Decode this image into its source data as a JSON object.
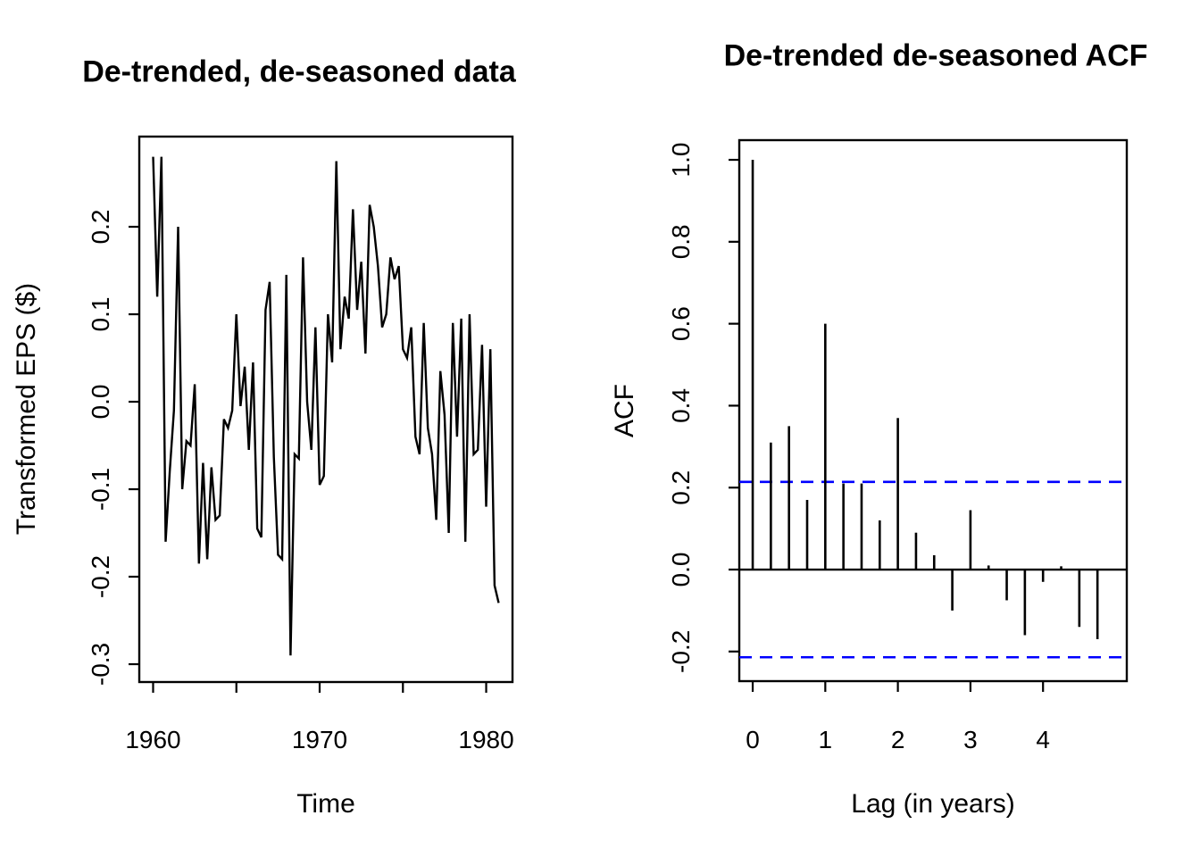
{
  "figure": {
    "background": "#FFFFFF",
    "foreground": "#000000",
    "confidence_color": "#0000FF"
  },
  "chart_data": [
    {
      "type": "line",
      "title": "De-trended, de-seasoned data",
      "xlabel": "Time",
      "ylabel": "Transformed EPS ($)",
      "line_color": "#000000",
      "xlim": [
        1959.17,
        1981.58
      ],
      "ylim": [
        -0.3204,
        0.3031
      ],
      "x_start": 1960,
      "x_step": 0.25,
      "x_ticks": [
        {
          "value": 1960,
          "label": "1960"
        },
        {
          "value": 1965,
          "label": ""
        },
        {
          "value": 1970,
          "label": "1970"
        },
        {
          "value": 1975,
          "label": ""
        },
        {
          "value": 1980,
          "label": "1980"
        }
      ],
      "y_ticks": [
        {
          "value": 0.2,
          "label": "0.2"
        },
        {
          "value": 0.1,
          "label": "0.1"
        },
        {
          "value": 0.0,
          "label": "0.0"
        },
        {
          "value": -0.1,
          "label": "-0.1"
        },
        {
          "value": -0.2,
          "label": "-0.2"
        },
        {
          "value": -0.3,
          "label": "-0.3"
        }
      ],
      "values": [
        0.28,
        0.12,
        0.28,
        -0.16,
        -0.08,
        -0.01,
        0.2,
        -0.1,
        -0.045,
        -0.05,
        0.02,
        -0.185,
        -0.07,
        -0.18,
        -0.075,
        -0.135,
        -0.13,
        -0.02,
        -0.03,
        -0.01,
        0.1,
        -0.005,
        0.04,
        -0.055,
        0.045,
        -0.145,
        -0.155,
        0.105,
        0.137,
        -0.063,
        -0.175,
        -0.18,
        0.145,
        -0.29,
        -0.06,
        -0.065,
        0.165,
        0.0,
        -0.055,
        0.085,
        -0.095,
        -0.085,
        0.1,
        0.045,
        0.275,
        0.06,
        0.12,
        0.095,
        0.22,
        0.105,
        0.16,
        0.055,
        0.225,
        0.2,
        0.155,
        0.085,
        0.1,
        0.165,
        0.14,
        0.155,
        0.06,
        0.05,
        0.085,
        -0.04,
        -0.06,
        0.09,
        -0.03,
        -0.06,
        -0.135,
        0.035,
        -0.015,
        -0.15,
        0.09,
        -0.04,
        0.095,
        -0.16,
        0.1,
        -0.06,
        -0.055,
        0.065,
        -0.12,
        0.06,
        -0.21,
        -0.23
      ]
    },
    {
      "type": "acf",
      "title": "De-trended de-seasoned ACF",
      "xlabel": "Lag (in years)",
      "ylabel": "ACF",
      "spike_color": "#000000",
      "confidence_level": 0.214,
      "confidence_color": "#0000FF",
      "xlim": [
        -0.185,
        5.154
      ],
      "ylim": [
        -0.2723,
        1.048
      ],
      "x_ticks": [
        {
          "value": 0,
          "label": "0"
        },
        {
          "value": 1,
          "label": "1"
        },
        {
          "value": 2,
          "label": "2"
        },
        {
          "value": 3,
          "label": "3"
        },
        {
          "value": 4,
          "label": "4"
        }
      ],
      "y_ticks": [
        {
          "value": 1.0,
          "label": "1.0"
        },
        {
          "value": 0.8,
          "label": "0.8"
        },
        {
          "value": 0.6,
          "label": "0.6"
        },
        {
          "value": 0.4,
          "label": "0.4"
        },
        {
          "value": 0.2,
          "label": "0.2"
        },
        {
          "value": 0.0,
          "label": "0.0"
        },
        {
          "value": -0.2,
          "label": "-0.2"
        }
      ],
      "lags": [
        0,
        0.25,
        0.5,
        0.75,
        1,
        1.25,
        1.5,
        1.75,
        2,
        2.25,
        2.5,
        2.75,
        3,
        3.25,
        3.5,
        3.75,
        4,
        4.25,
        4.5,
        4.75
      ],
      "values": [
        1.0,
        0.31,
        0.35,
        0.17,
        0.6,
        0.21,
        0.21,
        0.12,
        0.37,
        0.09,
        0.035,
        -0.1,
        0.145,
        0.01,
        -0.075,
        -0.16,
        -0.03,
        0.008,
        -0.14,
        -0.17
      ]
    }
  ],
  "labels": {
    "left_title": "De-trended, de-seasoned data",
    "left_xlabel": "Time",
    "left_ylabel": "Transformed EPS ($)",
    "right_title": "De-trended de-seasoned ACF",
    "right_xlabel": "Lag (in years)",
    "right_ylabel": "ACF"
  }
}
